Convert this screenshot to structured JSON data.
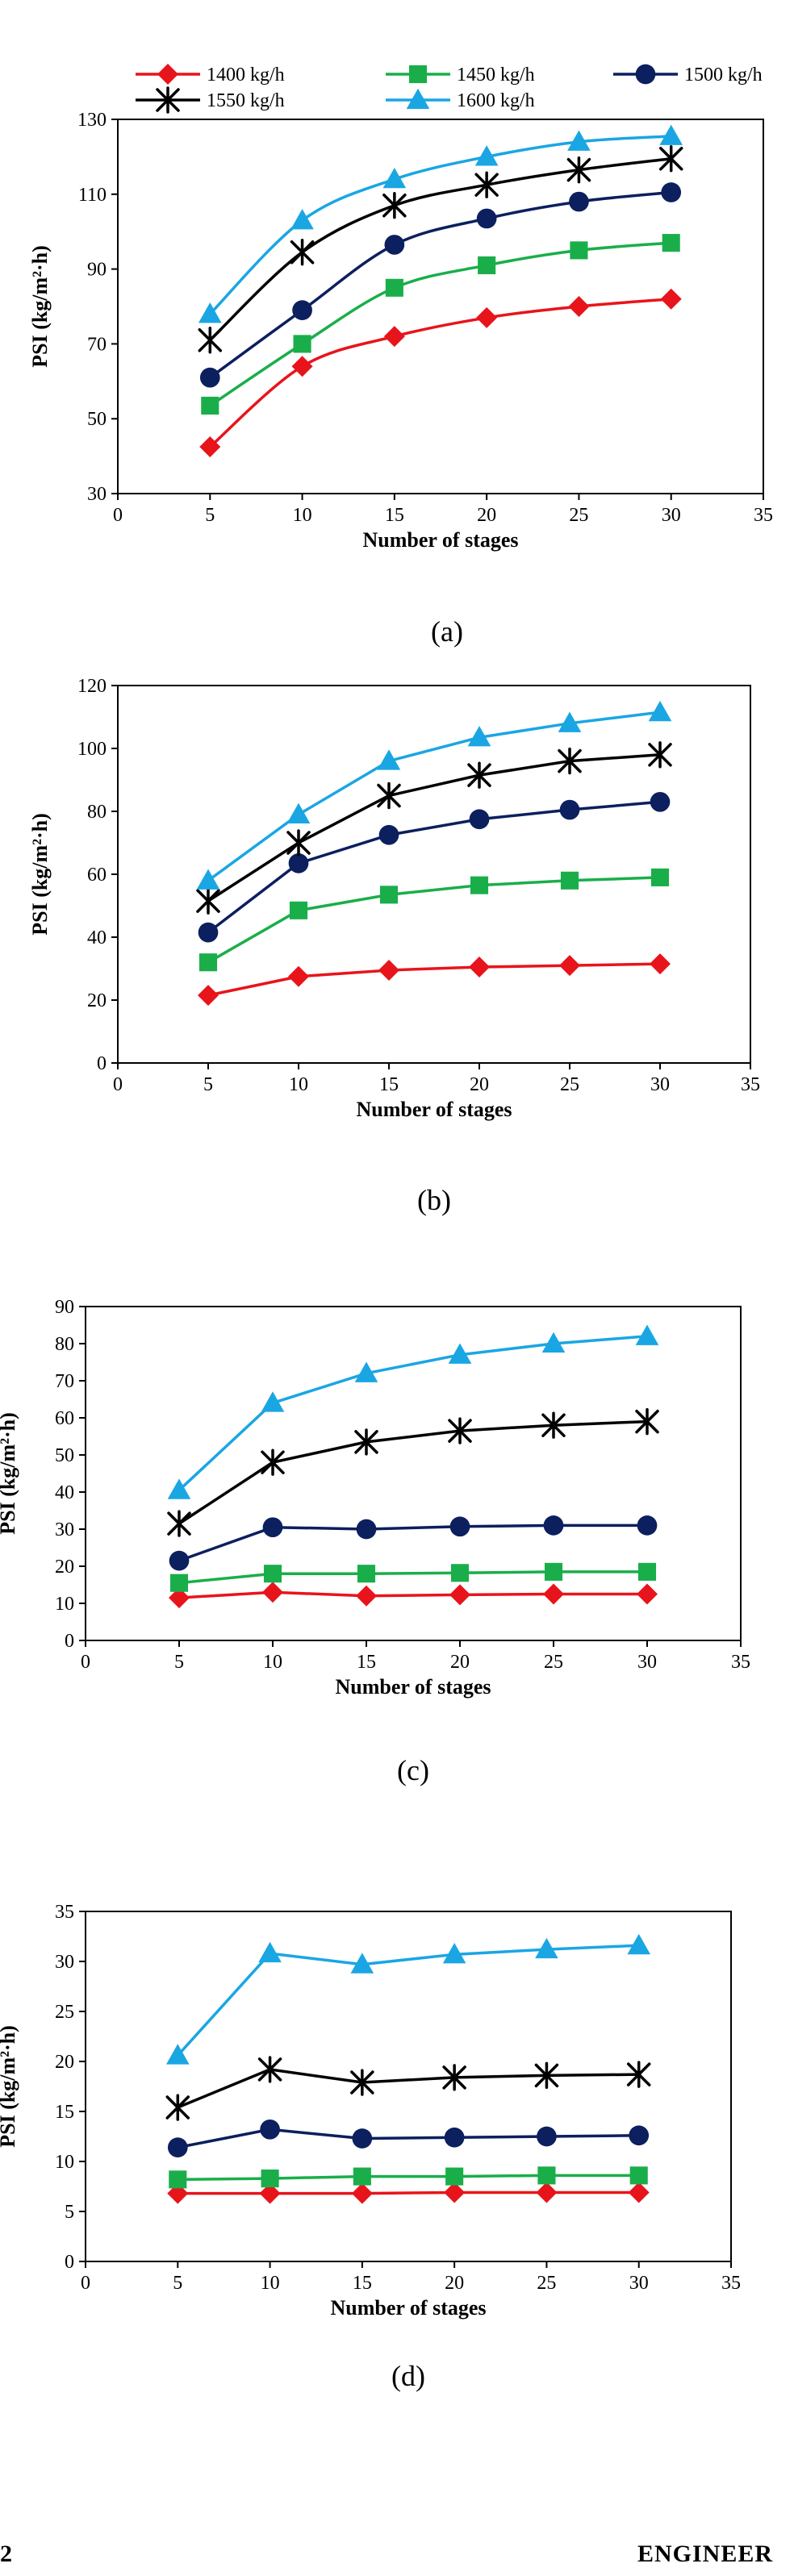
{
  "legend_entries": [
    {
      "name": "1400 kg/h",
      "color": "#e8141b",
      "marker": "diamond"
    },
    {
      "name": "1450 kg/h",
      "color": "#1aae4a",
      "marker": "square"
    },
    {
      "name": "1500 kg/h",
      "color": "#0c1f5e",
      "marker": "circle"
    },
    {
      "name": "1550 kg/h",
      "color": "#000000",
      "marker": "asterisk"
    },
    {
      "name": "1600 kg/h",
      "color": "#1aa6e3",
      "marker": "triangle"
    }
  ],
  "chart_data": [
    {
      "type": "line",
      "panel_label": "(a)",
      "xlabel": "Number of stages",
      "ylabel": "PSI (kg/m²·h)",
      "xlim": [
        0,
        35
      ],
      "ylim": [
        30,
        130
      ],
      "xticks": [
        "0",
        "5",
        "10",
        "15",
        "20",
        "25",
        "30",
        "35"
      ],
      "yticks": [
        "30",
        "50",
        "70",
        "90",
        "110",
        "130"
      ],
      "x": [
        5,
        10,
        15,
        20,
        25,
        30
      ],
      "smooth": true,
      "series": [
        {
          "name": "1400 kg/h",
          "values": [
            42.5,
            64,
            72,
            77,
            80,
            82
          ]
        },
        {
          "name": "1450 kg/h",
          "values": [
            53.5,
            70,
            85,
            91,
            95,
            97
          ]
        },
        {
          "name": "1500 kg/h",
          "values": [
            61,
            79,
            96.5,
            103.5,
            108,
            110.5
          ]
        },
        {
          "name": "1550 kg/h",
          "values": [
            71,
            94.5,
            107,
            112.5,
            116.5,
            119.5
          ]
        },
        {
          "name": "1600 kg/h",
          "values": [
            78,
            103,
            114,
            120,
            124,
            125.5
          ]
        }
      ]
    },
    {
      "type": "line",
      "panel_label": "(b)",
      "xlabel": "Number of stages",
      "ylabel": "PSI (kg/m²·h)",
      "xlim": [
        0,
        35
      ],
      "ylim": [
        0,
        120
      ],
      "xticks": [
        "0",
        "5",
        "10",
        "15",
        "20",
        "25",
        "30",
        "35"
      ],
      "yticks": [
        "0",
        "20",
        "40",
        "60",
        "80",
        "100",
        "120"
      ],
      "x": [
        5,
        10,
        15,
        20,
        25,
        30
      ],
      "smooth": false,
      "series": [
        {
          "name": "1400 kg/h",
          "values": [
            21.5,
            27.5,
            29.5,
            30.5,
            31,
            31.5
          ]
        },
        {
          "name": "1450 kg/h",
          "values": [
            32,
            48.5,
            53.5,
            56.5,
            58,
            59
          ]
        },
        {
          "name": "1500 kg/h",
          "values": [
            41.5,
            63.5,
            72.5,
            77.5,
            80.5,
            83
          ]
        },
        {
          "name": "1550 kg/h",
          "values": [
            51.5,
            70,
            85,
            91.5,
            96,
            98
          ]
        },
        {
          "name": "1600 kg/h",
          "values": [
            58,
            79,
            96,
            103.5,
            108,
            111.5
          ]
        }
      ]
    },
    {
      "type": "line",
      "panel_label": "(c)",
      "xlabel": "Number of stages",
      "ylabel": "PSI (kg/m²·h)",
      "xlim": [
        0,
        35
      ],
      "ylim": [
        0,
        90
      ],
      "xticks": [
        "0",
        "5",
        "10",
        "15",
        "20",
        "25",
        "30",
        "35"
      ],
      "yticks": [
        "0",
        "10",
        "20",
        "30",
        "40",
        "50",
        "60",
        "70",
        "80",
        "90"
      ],
      "x": [
        5,
        10,
        15,
        20,
        25,
        30
      ],
      "smooth": false,
      "series": [
        {
          "name": "1400 kg/h",
          "values": [
            11.5,
            13,
            12,
            12.3,
            12.5,
            12.5
          ]
        },
        {
          "name": "1450 kg/h",
          "values": [
            15.5,
            18,
            18,
            18.2,
            18.5,
            18.5
          ]
        },
        {
          "name": "1500 kg/h",
          "values": [
            21.5,
            30.5,
            30,
            30.7,
            31,
            31
          ]
        },
        {
          "name": "1550 kg/h",
          "values": [
            31.5,
            48,
            53.5,
            56.5,
            58,
            59
          ]
        },
        {
          "name": "1600 kg/h",
          "values": [
            40.5,
            64,
            72,
            77,
            80,
            82
          ]
        }
      ]
    },
    {
      "type": "line",
      "panel_label": "(d)",
      "xlabel": "Number of stages",
      "ylabel": "PSI (kg/m²·h)",
      "xlim": [
        0,
        35
      ],
      "ylim": [
        0,
        35
      ],
      "xticks": [
        "0",
        "5",
        "10",
        "15",
        "20",
        "25",
        "30",
        "35"
      ],
      "yticks": [
        "0",
        "5",
        "10",
        "15",
        "20",
        "25",
        "30",
        "35"
      ],
      "x": [
        5,
        10,
        15,
        20,
        25,
        30
      ],
      "smooth": false,
      "series": [
        {
          "name": "1400 kg/h",
          "values": [
            6.8,
            6.8,
            6.8,
            6.9,
            6.9,
            6.9
          ]
        },
        {
          "name": "1450 kg/h",
          "values": [
            8.2,
            8.3,
            8.5,
            8.5,
            8.6,
            8.6
          ]
        },
        {
          "name": "1500 kg/h",
          "values": [
            11.4,
            13.2,
            12.3,
            12.4,
            12.5,
            12.6
          ]
        },
        {
          "name": "1550 kg/h",
          "values": [
            15.4,
            19.2,
            17.9,
            18.4,
            18.6,
            18.7
          ]
        },
        {
          "name": "1600 kg/h",
          "values": [
            20.6,
            30.8,
            29.7,
            30.7,
            31.2,
            31.6
          ]
        }
      ]
    }
  ],
  "footer": {
    "page_number": "2",
    "journal": "ENGINEER"
  }
}
